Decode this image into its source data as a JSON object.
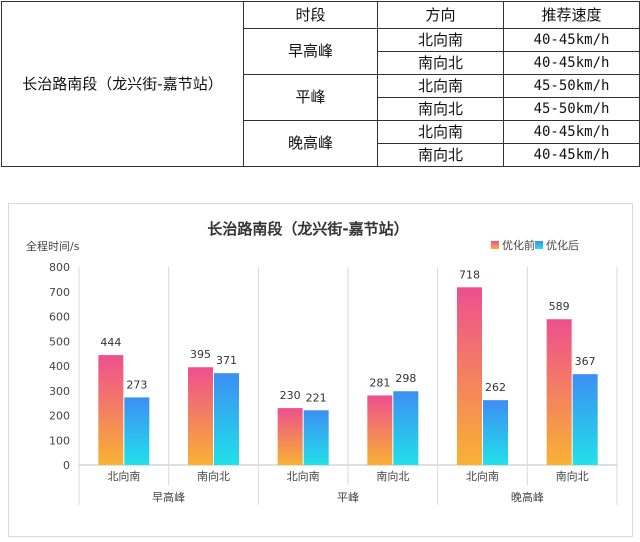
{
  "table": {
    "headers": [
      "时段",
      "方向",
      "推荐速度"
    ],
    "segment": "长治路南段（龙兴街-嘉节站）",
    "groups": [
      {
        "period": "早高峰",
        "rows": [
          {
            "direction": "北向南",
            "speed": "40-45km/h"
          },
          {
            "direction": "南向北",
            "speed": "40-45km/h"
          }
        ]
      },
      {
        "period": "平峰",
        "rows": [
          {
            "direction": "北向南",
            "speed": "45-50km/h"
          },
          {
            "direction": "南向北",
            "speed": "45-50km/h"
          }
        ]
      },
      {
        "period": "晚高峰",
        "rows": [
          {
            "direction": "北向南",
            "speed": "40-45km/h"
          },
          {
            "direction": "南向北",
            "speed": "40-45km/h"
          }
        ]
      }
    ]
  },
  "chart_data": {
    "type": "bar",
    "title": "长治路南段（龙兴街-嘉节站）",
    "ylabel": "全程时间/s",
    "ylim": [
      0,
      800
    ],
    "yticks": [
      0,
      100,
      200,
      300,
      400,
      500,
      600,
      700,
      800
    ],
    "legend_position": "top-right",
    "groups": [
      "早高峰",
      "平峰",
      "晚高峰"
    ],
    "categories": [
      "北向南",
      "南向北",
      "北向南",
      "南向北",
      "北向南",
      "南向北"
    ],
    "series": [
      {
        "name": "优化前",
        "values": [
          444,
          395,
          230,
          281,
          718,
          589
        ],
        "color_top": "#ee4f8f",
        "color_bottom": "#f9b233"
      },
      {
        "name": "优化后",
        "values": [
          273,
          371,
          221,
          298,
          262,
          367
        ],
        "color_top": "#3d8ef2",
        "color_bottom": "#21e1ea"
      }
    ]
  }
}
